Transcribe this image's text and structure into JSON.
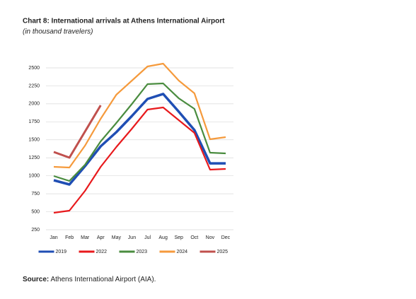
{
  "chart_data": {
    "type": "line",
    "title": "Chart 8: International arrivals at Athens International Airport",
    "subtitle": "(in thousand travelers)",
    "categories": [
      "Jan",
      "Feb",
      "Mar",
      "Apr",
      "May",
      "Jun",
      "Jul",
      "Aug",
      "Sep",
      "Oct",
      "Nov",
      "Dec"
    ],
    "series": [
      {
        "name": "2019",
        "color": "#1f4eb4",
        "width": 3.5,
        "values": [
          938,
          879,
          1134,
          1409,
          1606,
          1832,
          2068,
          2137,
          1891,
          1635,
          1173,
          1173
        ]
      },
      {
        "name": "2022",
        "color": "#e8191c",
        "width": 2.2,
        "values": [
          486,
          515,
          790,
          1124,
          1400,
          1655,
          1920,
          1950,
          1773,
          1596,
          1085,
          1095
        ]
      },
      {
        "name": "2023",
        "color": "#4a8c3f",
        "width": 2.2,
        "values": [
          997,
          928,
          1154,
          1478,
          1734,
          1999,
          2274,
          2284,
          2077,
          1930,
          1321,
          1311
        ]
      },
      {
        "name": "2024",
        "color": "#f59a3c",
        "width": 2.2,
        "values": [
          1124,
          1115,
          1419,
          1793,
          2127,
          2323,
          2520,
          2559,
          2323,
          2146,
          1508,
          1537
        ]
      },
      {
        "name": "2025",
        "color": "#c0504d",
        "width": 3,
        "values": [
          1331,
          1252,
          1616,
          1979,
          null,
          null,
          null,
          null,
          null,
          null,
          null,
          null
        ]
      }
    ],
    "ylim": [
      250,
      2500
    ],
    "yticks": [
      250,
      500,
      750,
      1000,
      1250,
      1500,
      1750,
      2000,
      2250,
      2500
    ],
    "grid": true,
    "legend": "bottom",
    "source_label": "Source:",
    "source_text": "Athens International Airport (AIA)."
  }
}
